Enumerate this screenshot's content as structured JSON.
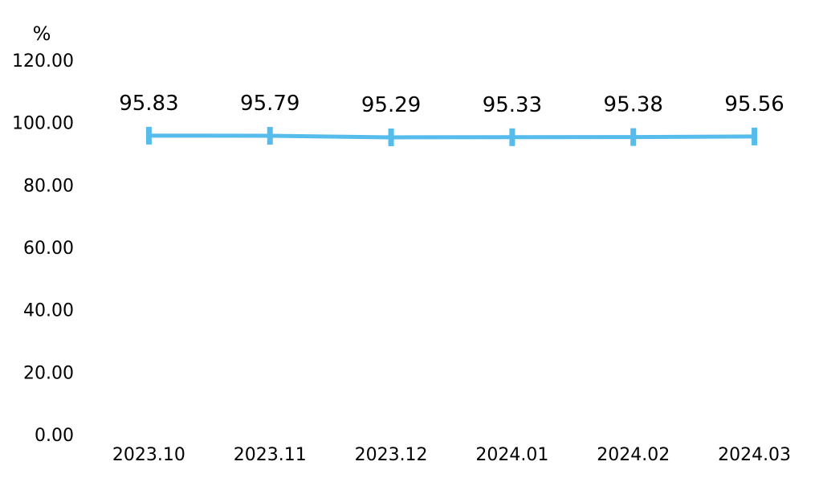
{
  "chart_data": {
    "type": "line",
    "y_unit_label": "%",
    "categories": [
      "2023.10",
      "2023.11",
      "2023.12",
      "2024.01",
      "2024.02",
      "2024.03"
    ],
    "series": [
      {
        "values": [
          95.83,
          95.79,
          95.29,
          95.33,
          95.38,
          95.56
        ],
        "data_labels": [
          "95.83",
          "95.79",
          "95.29",
          "95.33",
          "95.38",
          "95.56"
        ],
        "color": "#56BCEC"
      }
    ],
    "ylim": [
      0,
      120
    ],
    "y_ticks": [
      "0.00",
      "20.00",
      "40.00",
      "60.00",
      "80.00",
      "100.00",
      "120.00"
    ],
    "grid": false,
    "legend": "none"
  }
}
